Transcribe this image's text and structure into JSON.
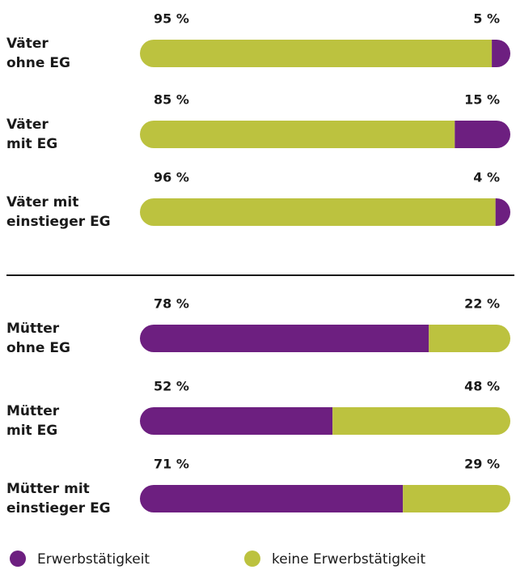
{
  "chart_data": [
    {
      "type": "stacked-bar-horizontal",
      "categories": [
        "Väter\nohne EG",
        "Väter\nmit EG",
        "Väter mit\neinstieger EG"
      ],
      "xlim": [
        0,
        100
      ],
      "series": [
        {
          "name": "keine Erwerbstätigkeit",
          "color": "#bcc23f",
          "values": [
            95,
            85,
            96
          ],
          "value_labels": [
            "95 %",
            "85 %",
            "96 %"
          ]
        },
        {
          "name": "Erwerbstätigkeit",
          "color": "#6d1f80",
          "values": [
            5,
            15,
            4
          ],
          "value_labels": [
            "5 %",
            "15 %",
            "4 %"
          ]
        }
      ]
    },
    {
      "type": "stacked-bar-horizontal",
      "categories": [
        "Mütter\nohne EG",
        "Mütter\nmit EG",
        "Mütter mit\neinstieger EG"
      ],
      "xlim": [
        0,
        100
      ],
      "series": [
        {
          "name": "Erwerbstätigkeit",
          "color": "#6d1f80",
          "values": [
            78,
            52,
            71
          ],
          "value_labels": [
            "78 %",
            "52 %",
            "71 %"
          ]
        },
        {
          "name": "keine Erwerbstätigkeit",
          "color": "#bcc23f",
          "values": [
            22,
            48,
            29
          ],
          "value_labels": [
            "22 %",
            "48 %",
            "29 %"
          ]
        }
      ]
    }
  ]
}
